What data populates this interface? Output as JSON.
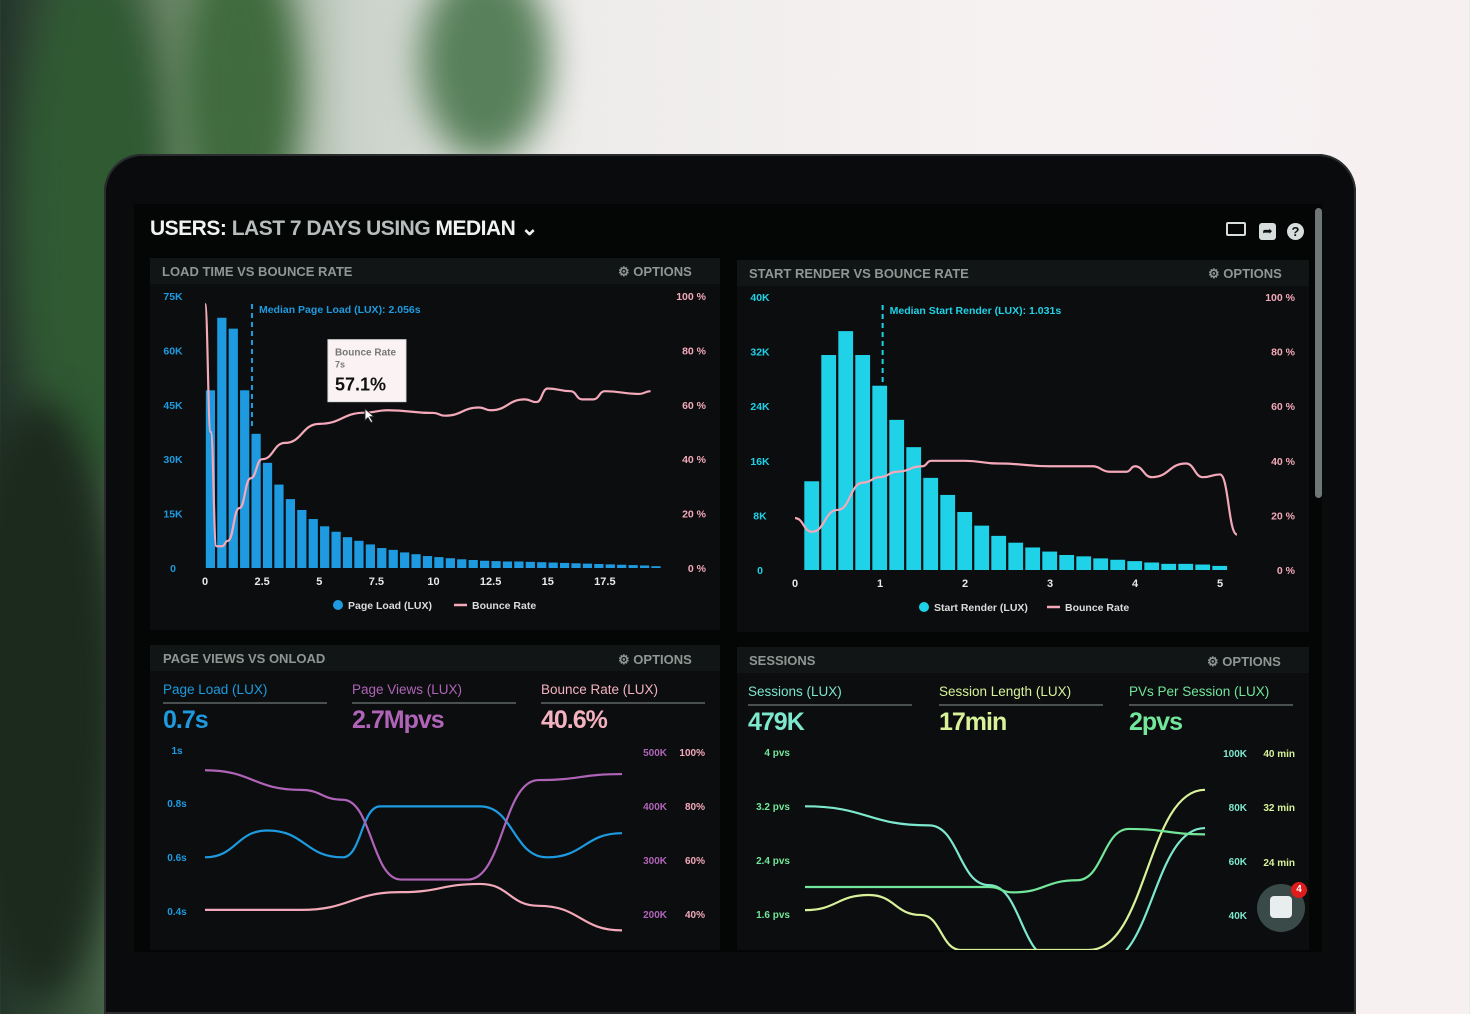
{
  "header": {
    "title_parts": [
      "USERS:",
      "LAST 7 DAYS",
      "USING",
      "MEDIAN"
    ],
    "icons": [
      "monitor-icon",
      "share-icon",
      "help-icon"
    ]
  },
  "panels": {
    "load_time": {
      "title": "LOAD TIME VS BOUNCE RATE",
      "options": "OPTIONS"
    },
    "start_render": {
      "title": "START RENDER VS BOUNCE RATE",
      "options": "OPTIONS"
    },
    "page_views": {
      "title": "PAGE VIEWS VS ONLOAD",
      "options": "OPTIONS",
      "kpis": [
        {
          "label": "Page Load (LUX)",
          "value": "0.7s",
          "color": "#1e9be0"
        },
        {
          "label": "Page Views (LUX)",
          "value": "2.7Mpvs",
          "color": "#b064b8"
        },
        {
          "label": "Bounce Rate (LUX)",
          "value": "40.6%",
          "color": "#f4b2c0"
        }
      ]
    },
    "sessions": {
      "title": "SESSIONS",
      "options": "OPTIONS",
      "kpis": [
        {
          "label": "Sessions (LUX)",
          "value": "479K",
          "color": "#7ee8cf"
        },
        {
          "label": "Session Length (LUX)",
          "value": "17min",
          "color": "#d9f29a"
        },
        {
          "label": "PVs Per Session (LUX)",
          "value": "2pvs",
          "color": "#72e69a"
        }
      ]
    }
  },
  "chat": {
    "badge": "4",
    "icon": "chat-icon"
  },
  "colors": {
    "page_load": "#1e9be0",
    "start_render": "#1fd2e8",
    "bounce": "#f3a9b9",
    "page_views": "#b064b8",
    "sessions": "#7ee8cf",
    "session_length": "#d9f29a",
    "pvs": "#72e69a"
  },
  "chart_data": [
    {
      "type": "bar+line",
      "title": "LOAD TIME VS BOUNCE RATE",
      "xlim": [
        0,
        20
      ],
      "x_ticks": [
        "0",
        "2.5",
        "5",
        "7.5",
        "10",
        "12.5",
        "15",
        "17.5"
      ],
      "x_tick_values": [
        0,
        2.5,
        5,
        7.5,
        10,
        12.5,
        15,
        17.5
      ],
      "y_left": {
        "range": [
          0,
          75000
        ],
        "ticks": [
          "0",
          "15K",
          "30K",
          "45K",
          "60K",
          "75K"
        ]
      },
      "y_right": {
        "range": [
          0,
          100
        ],
        "ticks": [
          "0 %",
          "20 %",
          "40 %",
          "60 %",
          "80 %",
          "100 %"
        ]
      },
      "bars": {
        "name": "Page Load (LUX)",
        "bin_width": 0.5,
        "values": [
          49000,
          69000,
          66000,
          49000,
          37000,
          29000,
          23000,
          19000,
          16000,
          13500,
          11500,
          10000,
          8500,
          7500,
          6500,
          5500,
          5000,
          4300,
          3800,
          3300,
          3000,
          2700,
          2400,
          2200,
          2000,
          1900,
          1800,
          1800,
          1700,
          1600,
          1500,
          1400,
          1300,
          1200,
          1100,
          1000,
          900,
          800,
          700,
          500
        ]
      },
      "line": {
        "name": "Bounce Rate",
        "x": [
          0,
          0.25,
          0.5,
          0.75,
          1,
          1.5,
          2,
          2.5,
          3.5,
          5,
          7,
          8,
          10,
          10.5,
          12,
          12.5,
          14,
          14.5,
          15,
          16,
          16.5,
          17,
          17.5,
          19,
          19.5
        ],
        "y": [
          97,
          50,
          8,
          8,
          10,
          22,
          33,
          40,
          46,
          53,
          57.1,
          58,
          57,
          56,
          59,
          58,
          62,
          61,
          66,
          65,
          62,
          62,
          65,
          64,
          65
        ]
      },
      "median": {
        "label": "Median Page Load (LUX): 2.056s",
        "x": 2.056
      },
      "tooltip": {
        "title": "Bounce Rate",
        "x_label": "7s",
        "value": "57.1%",
        "x": 7,
        "y": 57.1
      },
      "legend": [
        "Page Load (LUX)",
        "Bounce Rate"
      ],
      "legend_position": "bottom"
    },
    {
      "type": "bar+line",
      "title": "START RENDER VS BOUNCE RATE",
      "xlim": [
        0,
        5.2
      ],
      "x_ticks": [
        "0",
        "1",
        "2",
        "3",
        "4",
        "5"
      ],
      "x_tick_values": [
        0,
        1,
        2,
        3,
        4,
        5
      ],
      "y_left": {
        "range": [
          0,
          40000
        ],
        "ticks": [
          "0",
          "8K",
          "16K",
          "24K",
          "32K",
          "40K"
        ]
      },
      "y_right": {
        "range": [
          0,
          100
        ],
        "ticks": [
          "0 %",
          "20 %",
          "40 %",
          "60 %",
          "80 %",
          "100 %"
        ]
      },
      "bars": {
        "name": "Start Render (LUX)",
        "bin_width": 0.2,
        "values": [
          13000,
          31500,
          35000,
          31500,
          27000,
          22000,
          18000,
          13500,
          11000,
          8500,
          6500,
          5000,
          4000,
          3300,
          2700,
          2200,
          2000,
          1700,
          1500,
          1300,
          1100,
          900,
          900,
          800,
          600
        ]
      },
      "line": {
        "name": "Bounce Rate",
        "x": [
          0,
          0.2,
          0.5,
          0.8,
          1,
          1.2,
          1.5,
          1.6,
          2,
          2.4,
          3,
          3.5,
          3.7,
          3.9,
          4,
          4.2,
          4.6,
          4.8,
          5,
          5.2
        ],
        "y": [
          19,
          14,
          22,
          32,
          34,
          36,
          38,
          40,
          40,
          39,
          38,
          38,
          36,
          36,
          38,
          34,
          39,
          34,
          35,
          13
        ]
      },
      "median": {
        "label": "Median Start Render (LUX): 1.031s",
        "x": 1.031
      },
      "legend": [
        "Start Render (LUX)",
        "Bounce Rate"
      ],
      "legend_position": "bottom"
    },
    {
      "type": "line",
      "title": "PAGE VIEWS VS ONLOAD",
      "xlim": [
        0,
        10
      ],
      "y_left": {
        "range": [
          0.4,
          1.0
        ],
        "ticks": [
          "0.4s",
          "0.6s",
          "0.8s",
          "1s"
        ]
      },
      "y_right_views": {
        "range": [
          200000,
          500000
        ],
        "ticks": [
          "200K",
          "300K",
          "400K",
          "500K"
        ]
      },
      "y_right_bounce": {
        "range": [
          40,
          100
        ],
        "ticks": [
          "40%",
          "60%",
          "80%",
          "100%"
        ]
      },
      "series": [
        {
          "name": "Page Load (LUX)",
          "axis": "left",
          "x": [
            0,
            1.5,
            3.3,
            4.2,
            6.6,
            8.2,
            10
          ],
          "y": [
            0.6,
            0.7,
            0.6,
            0.79,
            0.79,
            0.6,
            0.69
          ]
        },
        {
          "name": "Page Views (LUX)",
          "axis": "views",
          "x": [
            0,
            2.3,
            3.3,
            4.7,
            6.3,
            8,
            10
          ],
          "y": [
            463000,
            427000,
            409000,
            263000,
            263000,
            445000,
            456000
          ]
        },
        {
          "name": "Bounce Rate (LUX)",
          "axis": "bounce",
          "x": [
            0,
            2.3,
            4.7,
            6.6,
            8,
            10
          ],
          "y": [
            41.5,
            41.5,
            48,
            51,
            43,
            34
          ]
        }
      ]
    },
    {
      "type": "line",
      "title": "SESSIONS",
      "xlim": [
        0,
        10
      ],
      "y_left": {
        "range": [
          1.6,
          4
        ],
        "ticks": [
          "1.6 pvs",
          "2.4 pvs",
          "3.2 pvs",
          "4 pvs"
        ]
      },
      "y_right_sessions": {
        "range": [
          40000,
          100000
        ],
        "ticks": [
          "40K",
          "60K",
          "80K",
          "100K"
        ]
      },
      "y_right_length": {
        "range": [
          24,
          40
        ],
        "ticks": [
          "24 min",
          "32 min",
          "40 min"
        ]
      },
      "series": [
        {
          "name": "Sessions (LUX)",
          "axis": "sessions",
          "x": [
            0,
            3.1,
            4.6,
            6.2,
            7.4,
            10
          ],
          "y": [
            80000,
            73000,
            51000,
            24000,
            22000,
            72000
          ]
        },
        {
          "name": "Session Length (LUX)",
          "axis": "length",
          "x": [
            0,
            1.6,
            2.9,
            3.9,
            7.1,
            10
          ],
          "y": [
            17,
            19.2,
            16.3,
            11.2,
            11.2,
            34.5
          ]
        },
        {
          "name": "PVs Per Session (LUX)",
          "axis": "pvs",
          "x": [
            0,
            4.6,
            5.2,
            6.8,
            8.1,
            10
          ],
          "y": [
            2.0,
            2.0,
            1.92,
            2.1,
            2.86,
            2.78
          ]
        }
      ]
    }
  ]
}
